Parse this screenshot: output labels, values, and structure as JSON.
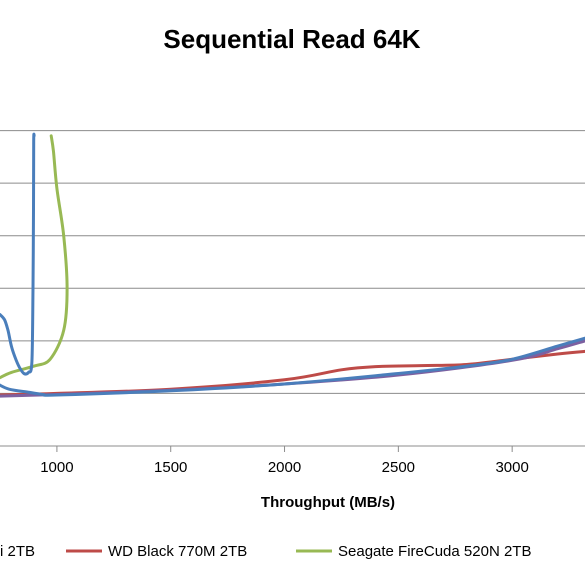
{
  "chart_data": {
    "type": "line",
    "title": "Sequential Read 64K",
    "xlabel": "Throughput (MB/s)",
    "ylabel": "",
    "xlim": [
      750,
      3320
    ],
    "ylim": [
      0,
      700
    ],
    "x_ticks": [
      1000,
      1500,
      2000,
      2500,
      3000
    ],
    "y_gridlines": [
      100,
      200,
      300,
      400,
      500,
      600
    ],
    "grid": true,
    "legend_position": "bottom",
    "series": [
      {
        "name": "i 2TB",
        "color": "#4a7ebb",
        "points": [
          [
            740,
            118
          ],
          [
            790,
            108
          ],
          [
            880,
            102
          ],
          [
            940,
            98
          ],
          [
            1000,
            97
          ],
          [
            1500,
            105
          ],
          [
            2000,
            118
          ],
          [
            2500,
            138
          ],
          [
            2800,
            152
          ],
          [
            3000,
            165
          ],
          [
            3200,
            190
          ],
          [
            3320,
            205
          ]
        ]
      },
      {
        "name": "WD Black 770M 2TB",
        "color": "#be4b48",
        "points": [
          [
            750,
            97
          ],
          [
            1000,
            100
          ],
          [
            1500,
            108
          ],
          [
            2000,
            126
          ],
          [
            2250,
            145
          ],
          [
            2400,
            151
          ],
          [
            2600,
            153
          ],
          [
            2800,
            155
          ],
          [
            3000,
            165
          ],
          [
            3200,
            175
          ],
          [
            3320,
            180
          ]
        ]
      },
      {
        "name": "Seagate FireCuda 520N 2TB",
        "color": "#98b954",
        "points": [
          [
            750,
            130
          ],
          [
            800,
            140
          ],
          [
            900,
            152
          ],
          [
            970,
            165
          ],
          [
            1030,
            220
          ],
          [
            1045,
            300
          ],
          [
            1030,
            400
          ],
          [
            1000,
            490
          ],
          [
            985,
            560
          ],
          [
            975,
            590
          ]
        ]
      },
      {
        "name": "",
        "color": "#7d60a0",
        "points": [
          [
            750,
            95
          ],
          [
            1000,
            98
          ],
          [
            1500,
            106
          ],
          [
            2000,
            118
          ],
          [
            2500,
            135
          ],
          [
            3000,
            163
          ],
          [
            3200,
            185
          ],
          [
            3320,
            200
          ]
        ]
      },
      {
        "name": "",
        "color": "#4a7ebb",
        "points": [
          [
            750,
            250
          ],
          [
            770,
            240
          ],
          [
            785,
            220
          ],
          [
            800,
            190
          ],
          [
            815,
            170
          ],
          [
            835,
            150
          ],
          [
            855,
            138
          ],
          [
            875,
            140
          ],
          [
            890,
            160
          ],
          [
            895,
            300
          ],
          [
            897,
            450
          ],
          [
            898,
            580
          ],
          [
            900,
            590
          ]
        ]
      }
    ]
  }
}
